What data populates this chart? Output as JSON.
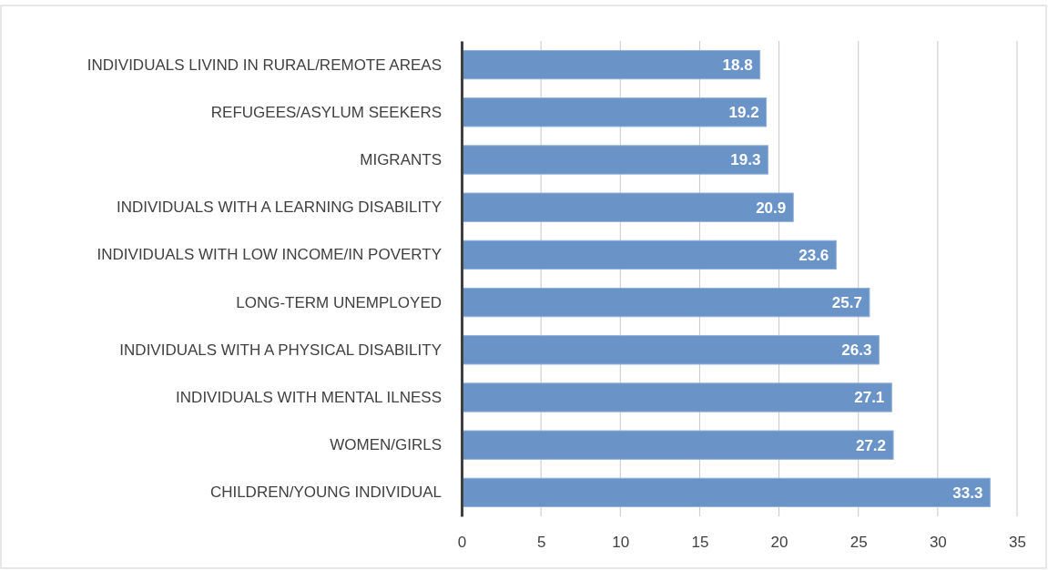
{
  "chart_data": {
    "type": "bar",
    "orientation": "horizontal",
    "categories": [
      "INDIVIDUALS LIVIND IN RURAL/REMOTE AREAS",
      "REFUGEES/ASYLUM SEEKERS",
      "MIGRANTS",
      "INDIVIDUALS WITH A LEARNING DISABILITY",
      "INDIVIDUALS WITH LOW INCOME/IN POVERTY",
      "LONG-TERM UNEMPLOYED",
      "INDIVIDUALS WITH A PHYSICAL DISABILITY",
      "INDIVIDUALS WITH MENTAL ILNESS",
      "WOMEN/GIRLS",
      "CHILDREN/YOUNG INDIVIDUAL"
    ],
    "values": [
      18.8,
      19.2,
      19.3,
      20.9,
      23.6,
      25.7,
      26.3,
      27.1,
      27.2,
      33.3
    ],
    "color": "#6a93c8",
    "xlim": [
      0,
      35
    ],
    "xticks": [
      0,
      5,
      10,
      15,
      20,
      25,
      30,
      35
    ],
    "grid": "x",
    "data_labels": true
  }
}
